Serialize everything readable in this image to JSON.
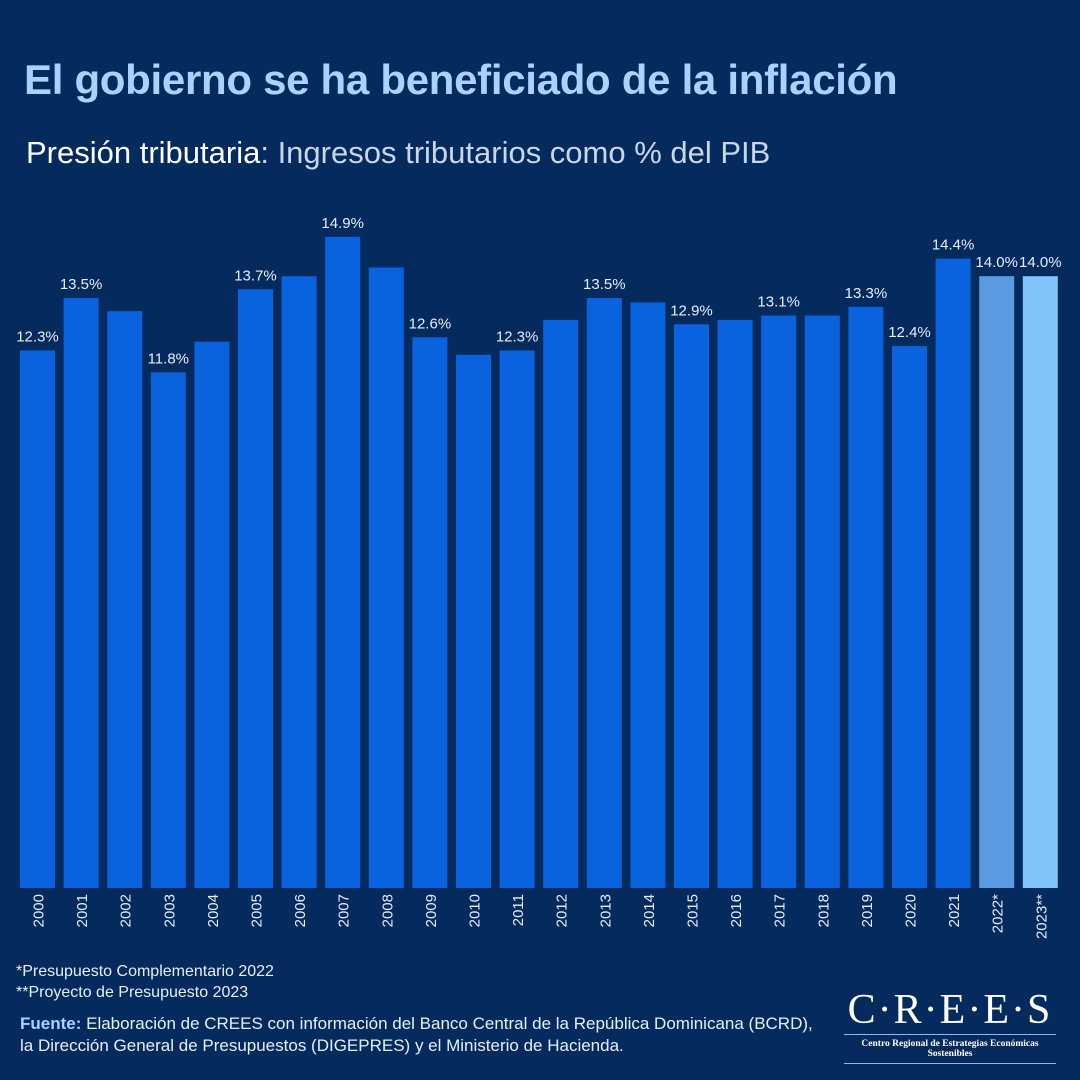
{
  "title": "El gobierno se ha beneficiado de la inflación",
  "subtitle_bold": "Presión tributaria",
  "subtitle_rest": ": Ingresos tributarios como % del PIB",
  "notes": [
    "*Presupuesto Complementario 2022",
    "**Proyecto de Presupuesto 2023"
  ],
  "source_label": "Fuente:",
  "source_text": " Elaboración de CREES con información del Banco Central de la República Dominicana (BCRD), la Dirección General de Presupuestos (DIGEPRES) y el Ministerio de Hacienda.",
  "logo": {
    "name": "C·R·E·E·S",
    "tagline": "Centro Regional de Estrategias Económicas Sostenibles"
  },
  "colors": {
    "bar": "#0a63de",
    "bar_2022": "#5a9ae0",
    "bar_2023": "#80c4fc",
    "label": "#e6eef8"
  },
  "chart_data": {
    "type": "bar",
    "title": "Presión tributaria: Ingresos tributarios como % del PIB",
    "xlabel": "",
    "ylabel": "% del PIB",
    "ylim": [
      0,
      15
    ],
    "grid": false,
    "categories": [
      "2000",
      "2001",
      "2002",
      "2003",
      "2004",
      "2005",
      "2006",
      "2007",
      "2008",
      "2009",
      "2010",
      "2011",
      "2012",
      "2013",
      "2014",
      "2015",
      "2016",
      "2017",
      "2018",
      "2019",
      "2020",
      "2021",
      "2022*",
      "2023**"
    ],
    "values": [
      12.3,
      13.5,
      13.2,
      11.8,
      12.5,
      13.7,
      14.0,
      14.9,
      14.2,
      12.6,
      12.2,
      12.3,
      13.0,
      13.5,
      13.4,
      12.9,
      13.0,
      13.1,
      13.1,
      13.3,
      12.4,
      14.4,
      14.0,
      14.0
    ],
    "data_labels": [
      "12.3%",
      "13.5%",
      null,
      "11.8%",
      null,
      "13.7%",
      null,
      "14.9%",
      null,
      "12.6%",
      null,
      "12.3%",
      null,
      "13.5%",
      null,
      "12.9%",
      null,
      "13.1%",
      null,
      "13.3%",
      "12.4%",
      "14.4%",
      "14.0%",
      "14.0%"
    ]
  }
}
